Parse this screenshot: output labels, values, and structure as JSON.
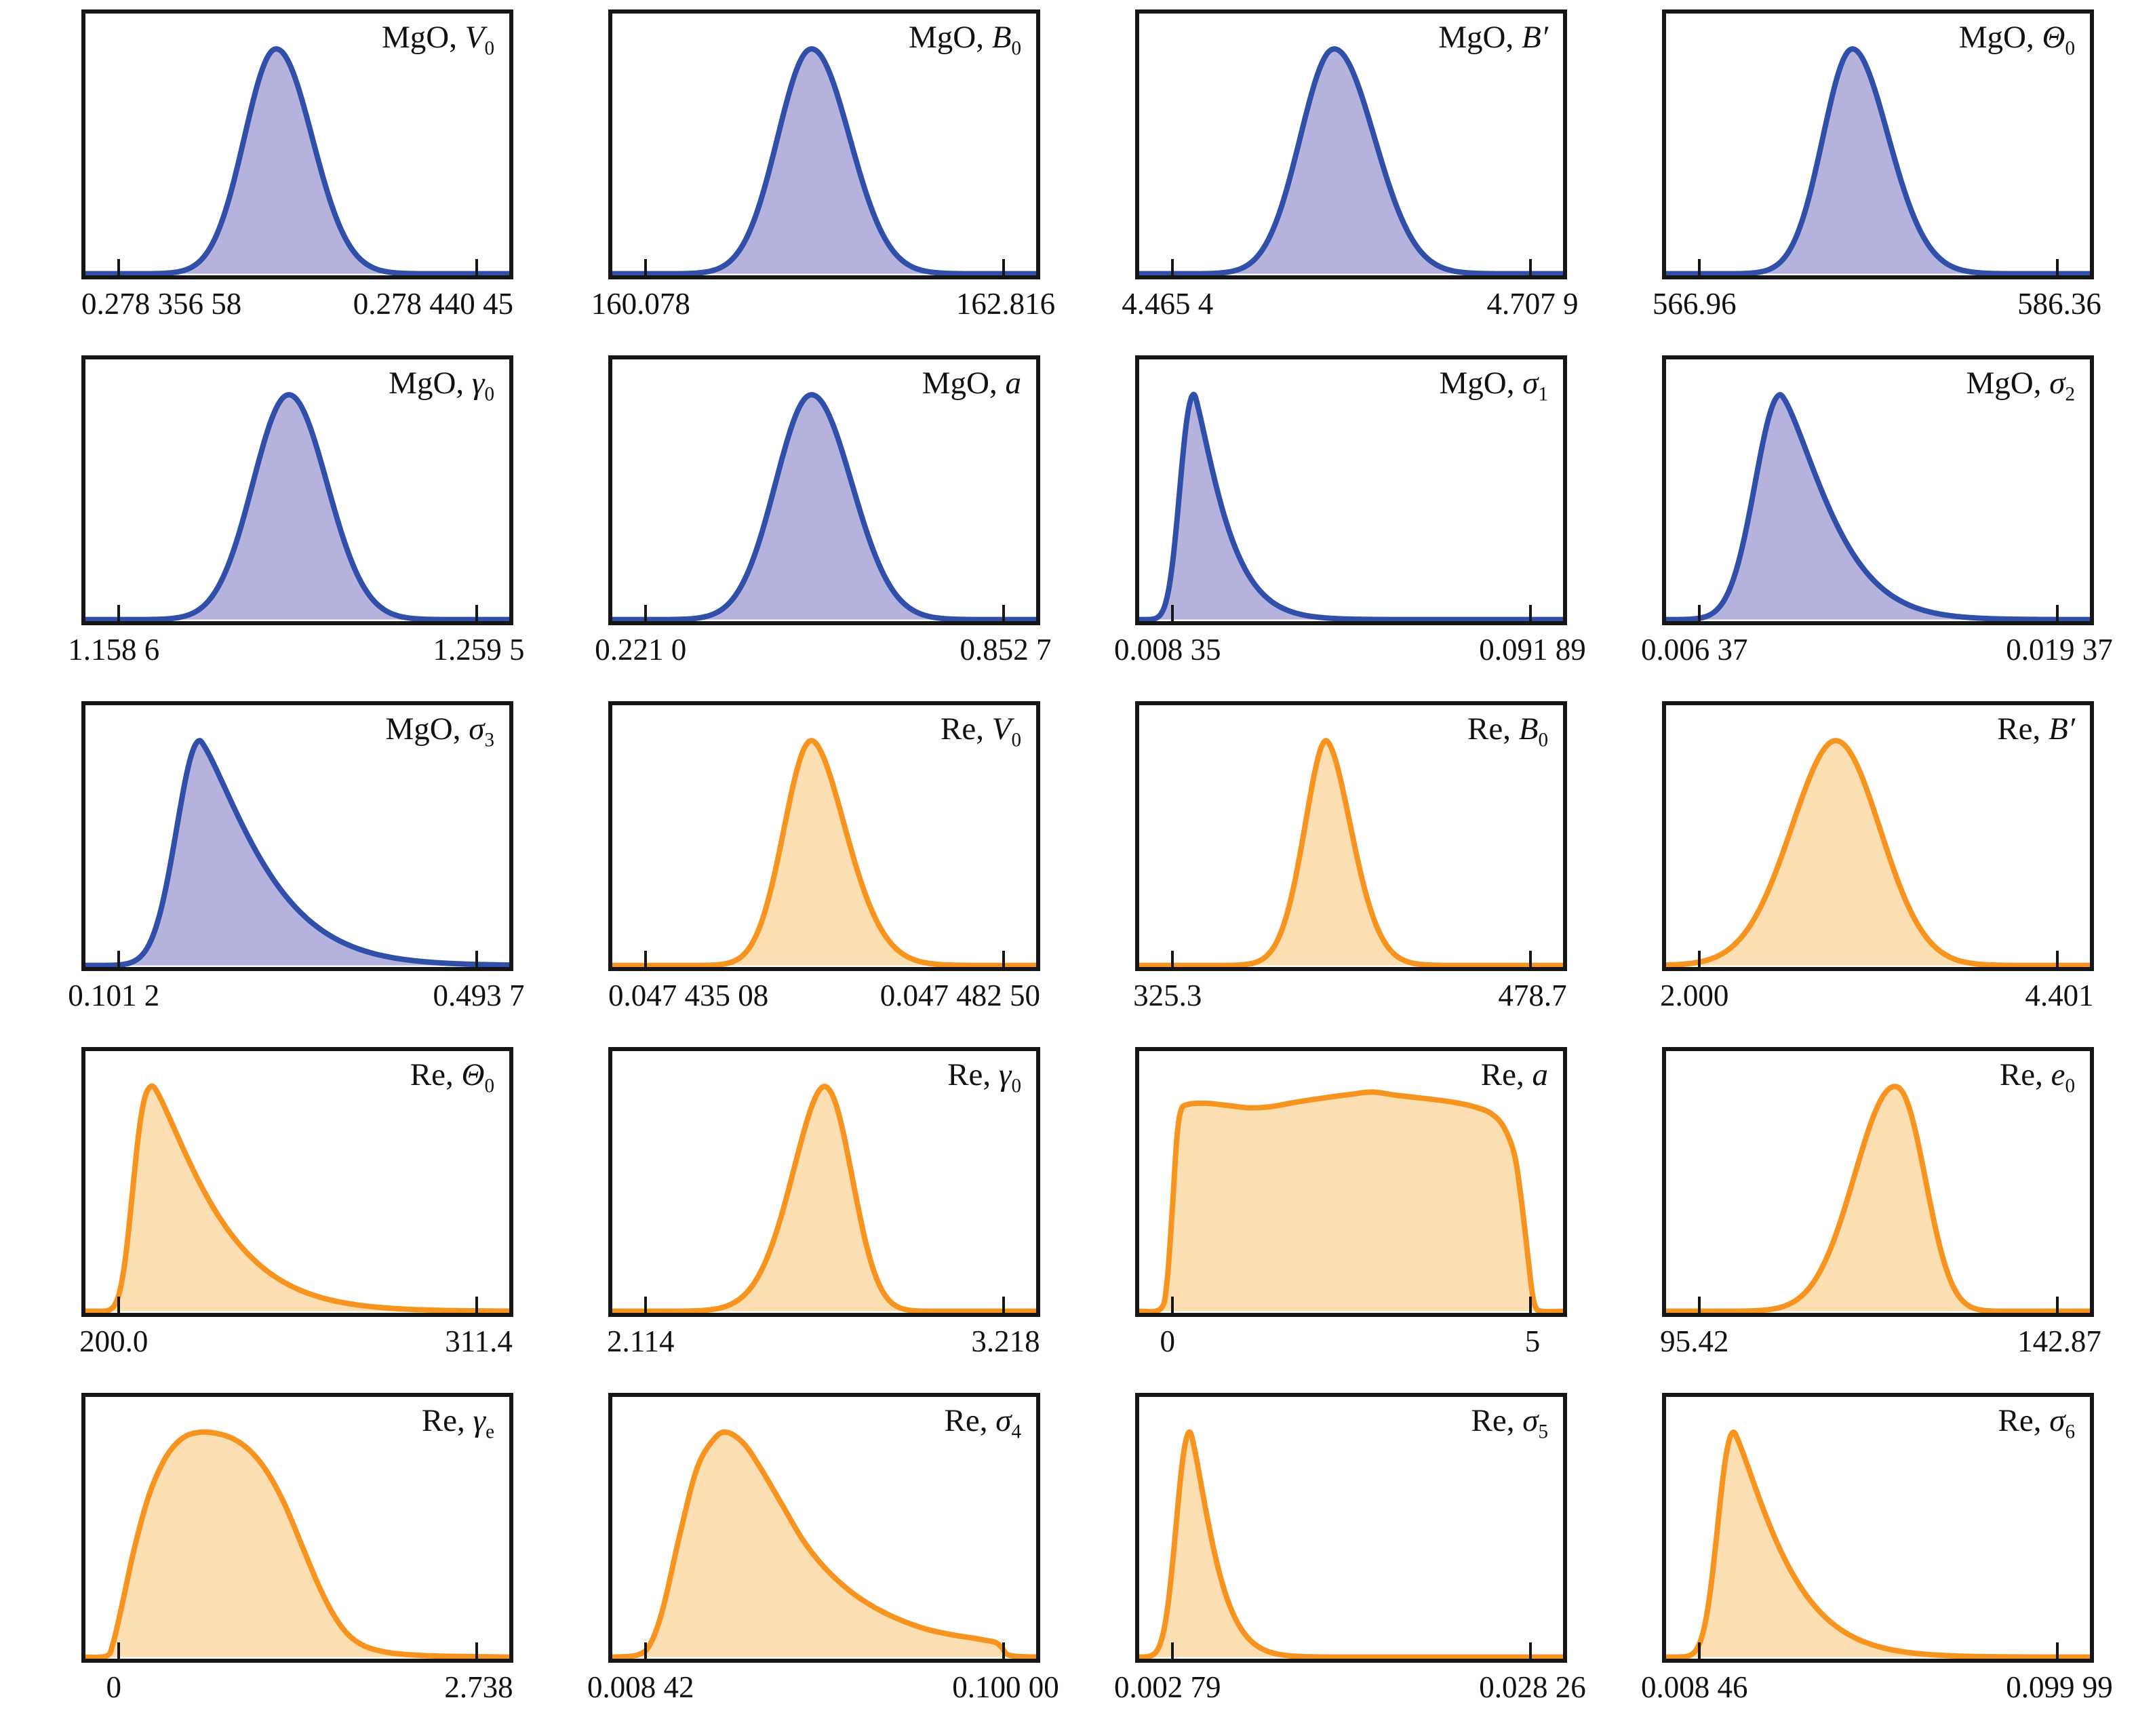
{
  "figure": {
    "rows": 5,
    "cols": 4,
    "description": "Grid of 20 posterior probability density (KDE) panels for MgO and Re model parameters"
  },
  "colors": {
    "blue_line": "#2f4fa9",
    "blue_fill": "#b5b3dd",
    "orange_line": "#f6941f",
    "orange_fill": "#fbdfb2",
    "frame": "#161616",
    "text": "#111111"
  },
  "chart_data": [
    {
      "type": "area",
      "group": "MgO",
      "symbol": "V",
      "sub": "0",
      "prime": false,
      "color": "blue",
      "xmin_label": "0.278 356 58",
      "xmax_label": "0.278 440 45",
      "curve": {
        "kind": "bell",
        "mode": 0.45,
        "wl": 0.075,
        "wr": 0.085,
        "pl": 2,
        "pr": 2
      }
    },
    {
      "type": "area",
      "group": "MgO",
      "symbol": "B",
      "sub": "0",
      "prime": false,
      "color": "blue",
      "xmin_label": "160.078",
      "xmax_label": "162.816",
      "curve": {
        "kind": "bell",
        "mode": 0.47,
        "wl": 0.08,
        "wr": 0.09,
        "pl": 2,
        "pr": 2
      }
    },
    {
      "type": "area",
      "group": "MgO",
      "symbol": "B",
      "sub": "",
      "prime": true,
      "color": "blue",
      "xmin_label": "4.465 4",
      "xmax_label": "4.707 9",
      "curve": {
        "kind": "bell",
        "mode": 0.46,
        "wl": 0.08,
        "wr": 0.095,
        "pl": 2,
        "pr": 2
      }
    },
    {
      "type": "area",
      "group": "MgO",
      "symbol": "Θ",
      "sub": "0",
      "prime": false,
      "color": "blue",
      "xmin_label": "566.96",
      "xmax_label": "586.36",
      "curve": {
        "kind": "bell",
        "mode": 0.44,
        "wl": 0.07,
        "wr": 0.085,
        "pl": 2,
        "pr": 1.9
      }
    },
    {
      "type": "area",
      "group": "MgO",
      "symbol": "γ",
      "sub": "0",
      "prime": false,
      "color": "blue",
      "xmin_label": "1.158 6",
      "xmax_label": "1.259 5",
      "curve": {
        "kind": "bell",
        "mode": 0.48,
        "wl": 0.085,
        "wr": 0.09,
        "pl": 2,
        "pr": 2
      }
    },
    {
      "type": "area",
      "group": "MgO",
      "symbol": "a",
      "sub": "",
      "prime": false,
      "color": "blue",
      "xmin_label": "0.221 0",
      "xmax_label": "0.852 7",
      "curve": {
        "kind": "bell",
        "mode": 0.47,
        "wl": 0.085,
        "wr": 0.095,
        "pl": 2,
        "pr": 2
      }
    },
    {
      "type": "area",
      "group": "MgO",
      "symbol": "σ",
      "sub": "1",
      "prime": false,
      "color": "blue",
      "xmin_label": "0.008 35",
      "xmax_label": "0.091 89",
      "curve": {
        "kind": "bell",
        "mode": 0.13,
        "wl": 0.033,
        "wr": 0.05,
        "pl": 2.3,
        "pr": 1.25
      }
    },
    {
      "type": "area",
      "group": "MgO",
      "symbol": "σ",
      "sub": "2",
      "prime": false,
      "color": "blue",
      "xmin_label": "0.006 37",
      "xmax_label": "0.019 37",
      "curve": {
        "kind": "bell",
        "mode": 0.27,
        "wl": 0.06,
        "wr": 0.09,
        "pl": 2,
        "pr": 1.4
      }
    },
    {
      "type": "area",
      "group": "MgO",
      "symbol": "σ",
      "sub": "3",
      "prime": false,
      "color": "blue",
      "xmin_label": "0.101 2",
      "xmax_label": "0.493 7",
      "curve": {
        "kind": "bell",
        "mode": 0.27,
        "wl": 0.055,
        "wr": 0.105,
        "pl": 2,
        "pr": 1.3
      }
    },
    {
      "type": "area",
      "group": "Re",
      "symbol": "V",
      "sub": "0",
      "prime": false,
      "color": "orange",
      "xmin_label": "0.047 435 08",
      "xmax_label": "0.047 482 50",
      "curve": {
        "kind": "bell",
        "mode": 0.47,
        "wl": 0.065,
        "wr": 0.08,
        "pl": 2,
        "pr": 1.8
      }
    },
    {
      "type": "area",
      "group": "Re",
      "symbol": "B",
      "sub": "0",
      "prime": false,
      "color": "orange",
      "xmin_label": "325.3",
      "xmax_label": "478.7",
      "curve": {
        "kind": "bell",
        "mode": 0.44,
        "wl": 0.05,
        "wr": 0.06,
        "pl": 1.8,
        "pr": 1.8
      }
    },
    {
      "type": "area",
      "group": "Re",
      "symbol": "B",
      "sub": "",
      "prime": true,
      "color": "orange",
      "xmin_label": "2.000",
      "xmax_label": "4.401",
      "curve": {
        "kind": "bell",
        "mode": 0.4,
        "wl": 0.105,
        "wr": 0.105,
        "pl": 1.9,
        "pr": 2
      }
    },
    {
      "type": "area",
      "group": "Re",
      "symbol": "Θ",
      "sub": "0",
      "prime": false,
      "color": "orange",
      "xmin_label": "200.0",
      "xmax_label": "311.4",
      "curve": {
        "kind": "bell",
        "mode": 0.16,
        "wl": 0.045,
        "wr": 0.1,
        "pl": 2.8,
        "pr": 1.25
      }
    },
    {
      "type": "area",
      "group": "Re",
      "symbol": "γ",
      "sub": "0",
      "prime": false,
      "color": "orange",
      "xmin_label": "2.114",
      "xmax_label": "3.218",
      "curve": {
        "kind": "bell",
        "mode": 0.5,
        "wl": 0.075,
        "wr": 0.065,
        "pl": 1.8,
        "pr": 2.1
      }
    },
    {
      "type": "area",
      "group": "Re",
      "symbol": "a",
      "sub": "",
      "prime": false,
      "color": "orange",
      "xmin_label": "0",
      "xmax_label": "5",
      "curve": {
        "kind": "points",
        "pts": [
          [
            0,
            0
          ],
          [
            0.05,
            0.01
          ],
          [
            0.065,
            0.12
          ],
          [
            0.078,
            0.45
          ],
          [
            0.088,
            0.75
          ],
          [
            0.098,
            0.89
          ],
          [
            0.115,
            0.92
          ],
          [
            0.16,
            0.925
          ],
          [
            0.21,
            0.915
          ],
          [
            0.26,
            0.905
          ],
          [
            0.31,
            0.91
          ],
          [
            0.37,
            0.93
          ],
          [
            0.44,
            0.95
          ],
          [
            0.5,
            0.965
          ],
          [
            0.55,
            0.975
          ],
          [
            0.61,
            0.96
          ],
          [
            0.68,
            0.945
          ],
          [
            0.74,
            0.93
          ],
          [
            0.79,
            0.91
          ],
          [
            0.83,
            0.88
          ],
          [
            0.86,
            0.82
          ],
          [
            0.885,
            0.7
          ],
          [
            0.9,
            0.52
          ],
          [
            0.915,
            0.28
          ],
          [
            0.926,
            0.1
          ],
          [
            0.935,
            0.02
          ],
          [
            0.95,
            0
          ],
          [
            1,
            0
          ]
        ]
      }
    },
    {
      "type": "area",
      "group": "Re",
      "symbol": "e",
      "sub": "0",
      "prime": false,
      "color": "orange",
      "xmin_label": "95.42",
      "xmax_label": "142.87",
      "curve": {
        "kind": "bell",
        "mode": 0.54,
        "wl": 0.095,
        "wr": 0.07,
        "pl": 2,
        "pr": 2.2
      }
    },
    {
      "type": "area",
      "group": "Re",
      "symbol": "γ",
      "sub": "e",
      "prime": false,
      "color": "orange",
      "xmin_label": "0",
      "xmax_label": "2.738",
      "curve": {
        "kind": "points",
        "pts": [
          [
            0,
            0
          ],
          [
            0.05,
            0.005
          ],
          [
            0.065,
            0.06
          ],
          [
            0.085,
            0.22
          ],
          [
            0.115,
            0.48
          ],
          [
            0.15,
            0.72
          ],
          [
            0.19,
            0.89
          ],
          [
            0.23,
            0.975
          ],
          [
            0.27,
            1.0
          ],
          [
            0.31,
            0.995
          ],
          [
            0.35,
            0.97
          ],
          [
            0.39,
            0.915
          ],
          [
            0.43,
            0.82
          ],
          [
            0.47,
            0.68
          ],
          [
            0.51,
            0.5
          ],
          [
            0.55,
            0.32
          ],
          [
            0.585,
            0.19
          ],
          [
            0.62,
            0.1
          ],
          [
            0.66,
            0.048
          ],
          [
            0.71,
            0.022
          ],
          [
            0.77,
            0.01
          ],
          [
            0.85,
            0.004
          ],
          [
            1,
            0
          ]
        ]
      }
    },
    {
      "type": "area",
      "group": "Re",
      "symbol": "σ",
      "sub": "4",
      "prime": false,
      "color": "orange",
      "xmin_label": "0.008 42",
      "xmax_label": "0.100 00",
      "curve": {
        "kind": "points",
        "pts": [
          [
            0,
            0
          ],
          [
            0.06,
            0.01
          ],
          [
            0.09,
            0.06
          ],
          [
            0.12,
            0.22
          ],
          [
            0.16,
            0.55
          ],
          [
            0.2,
            0.84
          ],
          [
            0.24,
            0.97
          ],
          [
            0.27,
            1.0
          ],
          [
            0.31,
            0.95
          ],
          [
            0.35,
            0.84
          ],
          [
            0.4,
            0.68
          ],
          [
            0.45,
            0.52
          ],
          [
            0.5,
            0.4
          ],
          [
            0.56,
            0.295
          ],
          [
            0.62,
            0.22
          ],
          [
            0.68,
            0.165
          ],
          [
            0.74,
            0.125
          ],
          [
            0.8,
            0.1
          ],
          [
            0.85,
            0.085
          ],
          [
            0.88,
            0.075
          ],
          [
            0.905,
            0.065
          ],
          [
            0.92,
            0.04
          ],
          [
            0.93,
            0.015
          ],
          [
            0.95,
            0.004
          ],
          [
            1,
            0
          ]
        ]
      }
    },
    {
      "type": "area",
      "group": "Re",
      "symbol": "σ",
      "sub": "5",
      "prime": false,
      "color": "orange",
      "xmin_label": "0.002 79",
      "xmax_label": "0.028 26",
      "curve": {
        "kind": "bell",
        "mode": 0.12,
        "wl": 0.032,
        "wr": 0.042,
        "pl": 2.2,
        "pr": 1.35
      }
    },
    {
      "type": "area",
      "group": "Re",
      "symbol": "σ",
      "sub": "6",
      "prime": false,
      "color": "orange",
      "xmin_label": "0.008 46",
      "xmax_label": "0.099 99",
      "curve": {
        "kind": "bell",
        "mode": 0.16,
        "wl": 0.037,
        "wr": 0.08,
        "pl": 2.2,
        "pr": 1.25
      }
    }
  ]
}
